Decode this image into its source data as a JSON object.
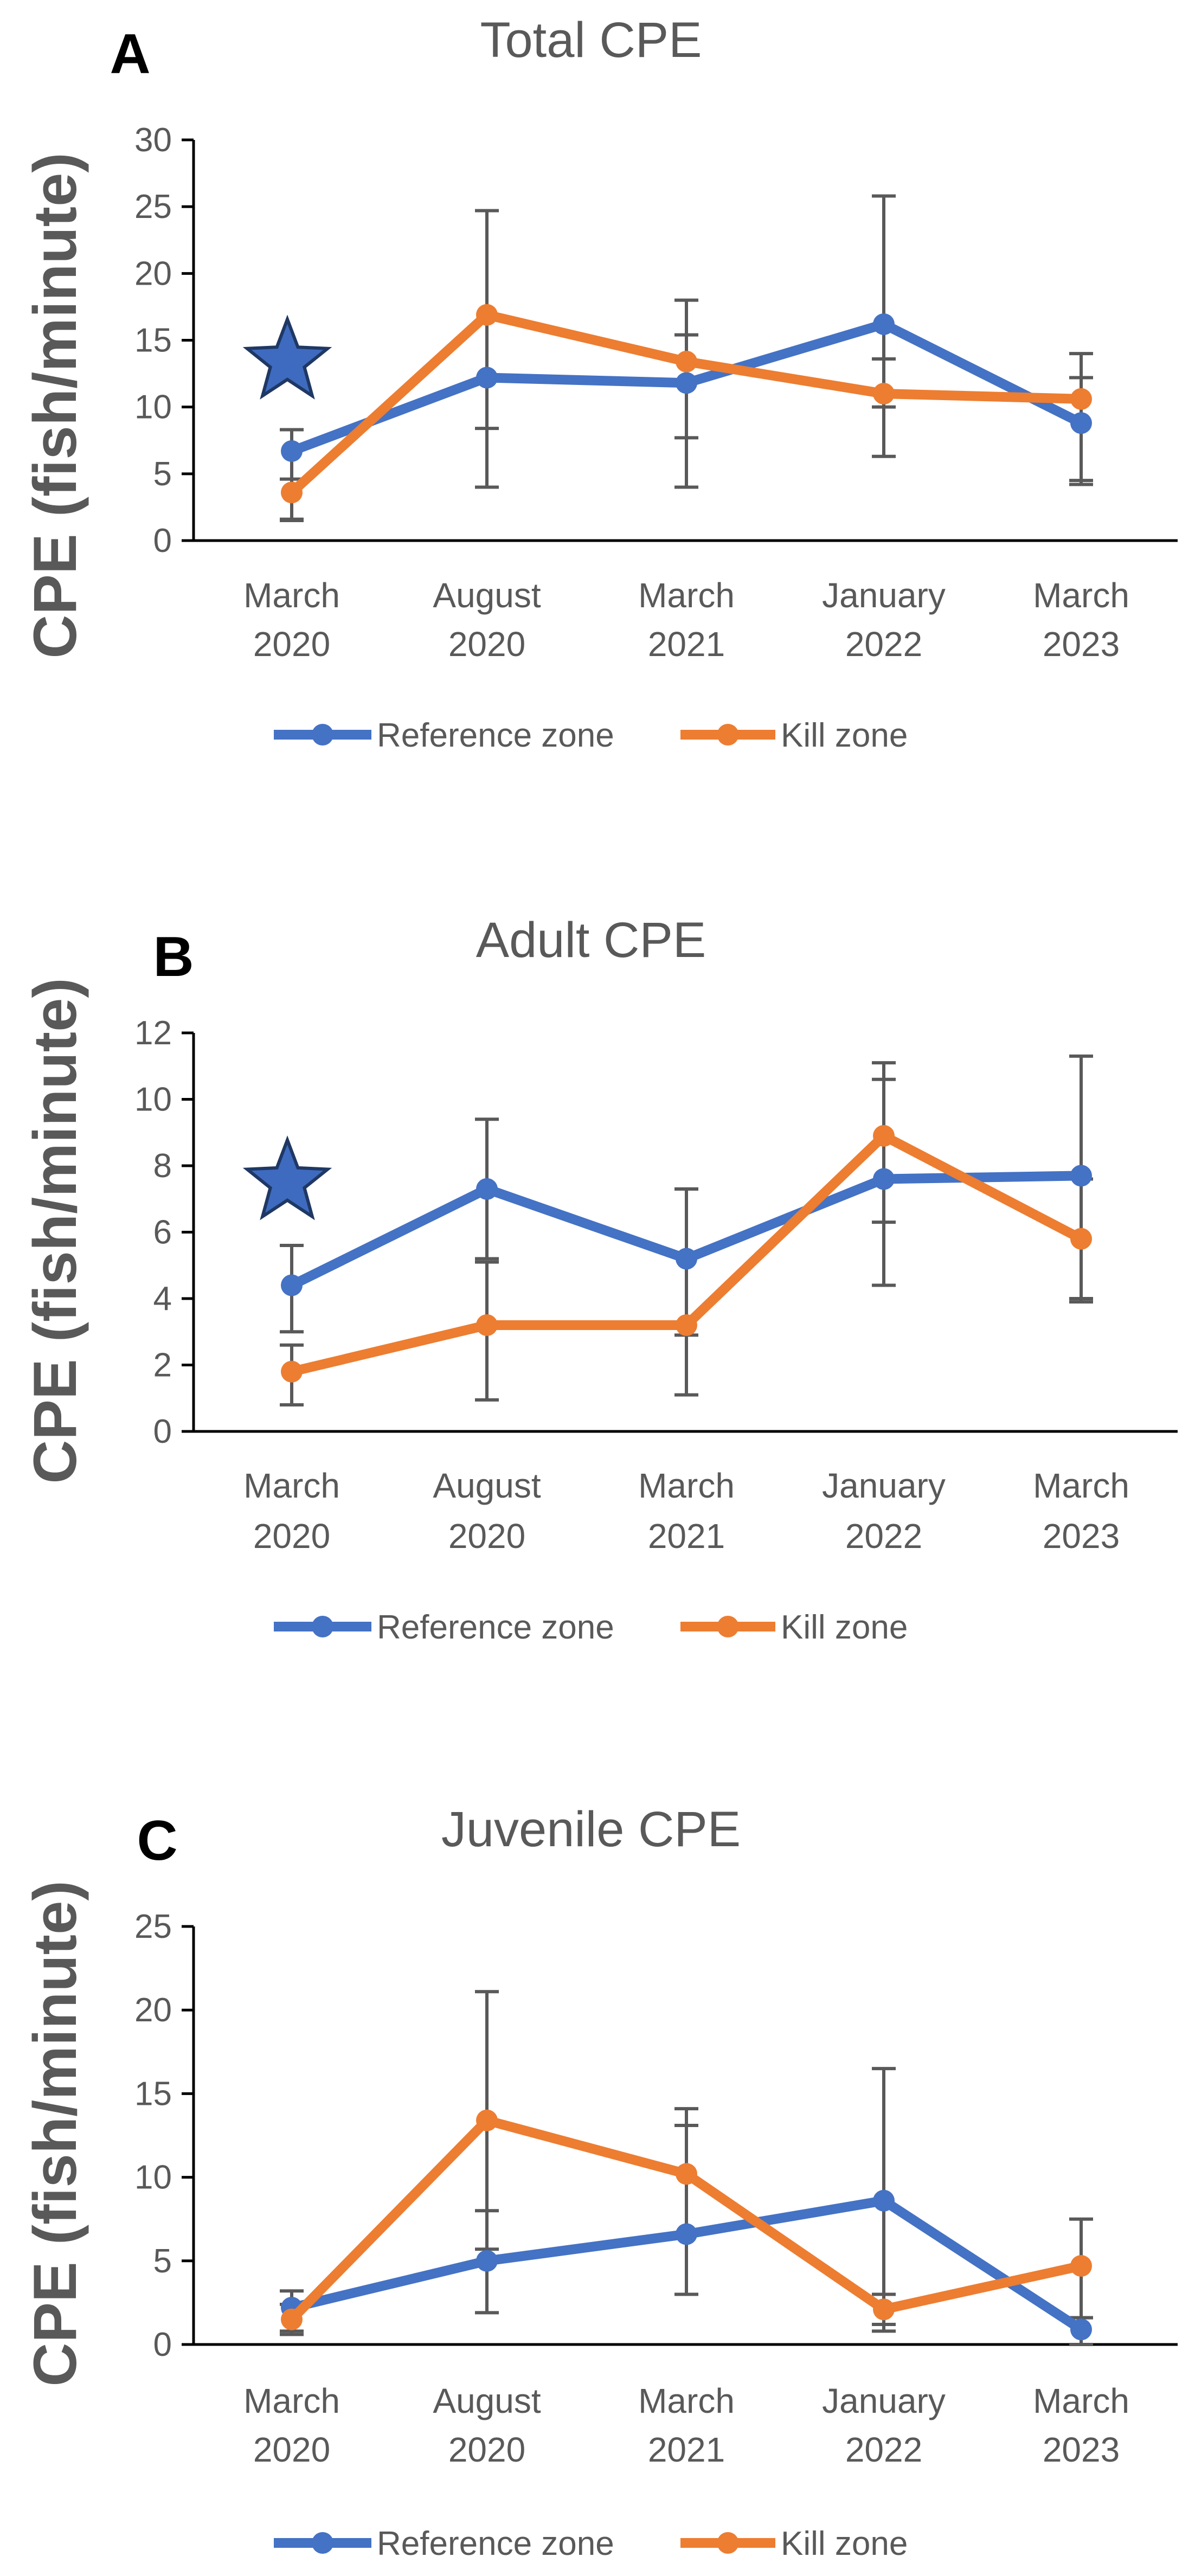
{
  "series_colors": {
    "Reference zone": "#4472C4",
    "Kill zone": "#ED7D31"
  },
  "star_color": "#3E6BBF",
  "chart_data": [
    {
      "type": "line",
      "panel": "A",
      "title": "Total CPE",
      "ylabel": "CPE (fish/minute)",
      "ylim": [
        0,
        30
      ],
      "yticks": [
        0,
        5,
        10,
        15,
        20,
        25,
        30
      ],
      "categories": [
        [
          "March",
          "2020"
        ],
        [
          "August",
          "2020"
        ],
        [
          "March",
          "2021"
        ],
        [
          "January",
          "2022"
        ],
        [
          "March",
          "2023"
        ]
      ],
      "series": [
        {
          "name": "Reference zone",
          "values": [
            6.7,
            12.2,
            11.8,
            16.2,
            8.8
          ],
          "err_low": [
            1.6,
            4.0,
            4.0,
            10.0,
            4.2
          ],
          "err_high": [
            8.3,
            24.7,
            18.0,
            25.8,
            14.0
          ]
        },
        {
          "name": "Kill zone",
          "values": [
            3.6,
            16.9,
            13.4,
            11.0,
            10.6
          ],
          "err_low": [
            1.5,
            8.4,
            7.7,
            6.3,
            4.5
          ],
          "err_high": [
            4.6,
            24.7,
            15.4,
            13.6,
            12.2
          ]
        }
      ],
      "star_at_category": 0,
      "star_value": 13.4,
      "legend": "bottom"
    },
    {
      "type": "line",
      "panel": "B",
      "title": "Adult CPE",
      "ylabel": "CPE (fish/minute)",
      "ylim": [
        0,
        12
      ],
      "yticks": [
        0,
        2,
        4,
        6,
        8,
        10,
        12
      ],
      "categories": [
        [
          "March",
          "2020"
        ],
        [
          "August",
          "2020"
        ],
        [
          "March",
          "2021"
        ],
        [
          "January",
          "2022"
        ],
        [
          "March",
          "2023"
        ]
      ],
      "series": [
        {
          "name": "Reference zone",
          "values": [
            4.4,
            7.3,
            5.2,
            7.6,
            7.7
          ],
          "err_low": [
            3.0,
            5.2,
            2.9,
            4.4,
            4.0
          ],
          "err_high": [
            5.6,
            9.4,
            7.3,
            10.6,
            11.3
          ]
        },
        {
          "name": "Kill zone",
          "values": [
            1.8,
            3.2,
            3.2,
            8.9,
            5.8
          ],
          "err_low": [
            0.8,
            0.95,
            1.1,
            6.3,
            3.9
          ],
          "err_high": [
            2.6,
            5.1,
            7.3,
            11.1,
            7.6
          ]
        }
      ],
      "star_at_category": 0,
      "star_value": 7.5,
      "legend": "bottom"
    },
    {
      "type": "line",
      "panel": "C",
      "title": "Juvenile CPE",
      "ylabel": "CPE (fish/minute)",
      "ylim": [
        0,
        25
      ],
      "yticks": [
        0,
        5,
        10,
        15,
        20,
        25
      ],
      "categories": [
        [
          "March",
          "2020"
        ],
        [
          "August",
          "2020"
        ],
        [
          "March",
          "2021"
        ],
        [
          "January",
          "2022"
        ],
        [
          "March",
          "2023"
        ]
      ],
      "series": [
        {
          "name": "Reference zone",
          "values": [
            2.2,
            5.0,
            6.6,
            8.6,
            0.9
          ],
          "err_low": [
            0.8,
            1.9,
            3.0,
            0.8,
            0.0
          ],
          "err_high": [
            3.2,
            8.0,
            14.1,
            16.5,
            1.6
          ]
        },
        {
          "name": "Kill zone",
          "values": [
            1.5,
            13.4,
            10.2,
            2.1,
            4.7
          ],
          "err_low": [
            0.6,
            5.7,
            6.6,
            1.2,
            1.6
          ],
          "err_high": [
            2.4,
            21.1,
            13.1,
            3.0,
            7.5
          ]
        }
      ],
      "star_at_category": null,
      "star_value": null,
      "legend": "bottom"
    }
  ]
}
